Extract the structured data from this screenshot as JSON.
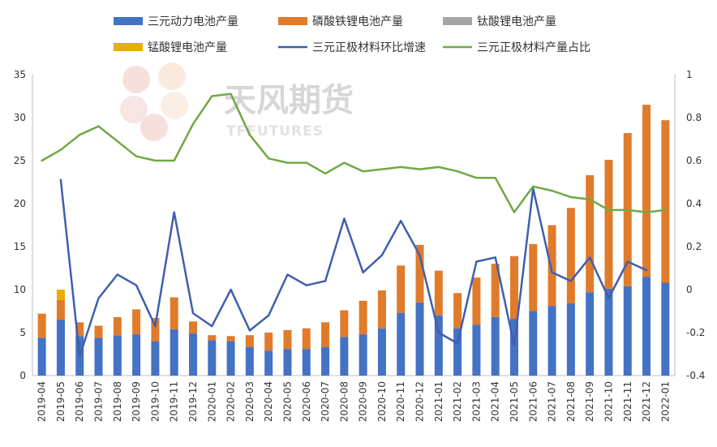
{
  "watermark": {
    "cn": "天风期货",
    "en": "TFFUTURES"
  },
  "colors": {
    "ternary": "#4472C4",
    "lfp": "#E07B2B",
    "lto": "#A5A5A5",
    "lmo": "#E6B000",
    "growth_line": "#3F5FAE",
    "share_line": "#70A843",
    "axis": "#BFBFBF"
  },
  "chart_data": {
    "type": "bar",
    "categories": [
      "2019-04",
      "2019-05",
      "2019-06",
      "2019-07",
      "2019-08",
      "2019-09",
      "2019-10",
      "2019-11",
      "2019-12",
      "2020-01",
      "2020-02",
      "2020-03",
      "2020-04",
      "2020-05",
      "2020-06",
      "2020-07",
      "2020-08",
      "2020-09",
      "2020-10",
      "2020-11",
      "2020-12",
      "2021-01",
      "2021-02",
      "2021-03",
      "2021-04",
      "2021-05",
      "2021-06",
      "2021-07",
      "2021-08",
      "2021-09",
      "2021-10",
      "2021-11",
      "2021-12",
      "2022-01"
    ],
    "y_left": {
      "min": 0,
      "max": 35,
      "ticks": [
        "0",
        "5",
        "10",
        "15",
        "20",
        "25",
        "30",
        "35"
      ]
    },
    "y_right": {
      "min": -0.4,
      "max": 1,
      "ticks": [
        "-0.4",
        "-0.2",
        "0",
        "0.2",
        "0.4",
        "0.6",
        "0.8",
        "1"
      ]
    },
    "legend_position": "top",
    "series": [
      {
        "name": "三元动力电池产量",
        "kind": "bar",
        "axis": "left",
        "color": "#4472C4",
        "values": [
          4.4,
          6.5,
          4.6,
          4.4,
          4.7,
          4.8,
          4.0,
          5.4,
          4.9,
          4.1,
          4.0,
          3.3,
          2.9,
          3.1,
          3.1,
          3.3,
          4.5,
          4.8,
          5.5,
          7.3,
          8.5,
          7.0,
          5.5,
          5.9,
          6.8,
          6.6,
          7.5,
          8.1,
          8.4,
          9.7,
          10.1,
          10.4,
          11.5,
          10.8
        ]
      },
      {
        "name": "磷酸铁锂电池产量",
        "kind": "bar",
        "axis": "left",
        "color": "#E07B2B",
        "values": [
          2.8,
          2.3,
          1.6,
          1.4,
          2.1,
          2.9,
          2.7,
          3.7,
          1.4,
          0.6,
          0.6,
          1.4,
          2.1,
          2.2,
          2.4,
          2.9,
          3.1,
          3.9,
          4.4,
          5.5,
          6.7,
          5.2,
          4.1,
          5.5,
          6.2,
          7.3,
          7.8,
          9.4,
          11.1,
          13.6,
          15.0,
          17.8,
          20.0,
          18.9
        ]
      },
      {
        "name": "钛酸锂电池产量",
        "kind": "bar",
        "axis": "left",
        "color": "#A5A5A5",
        "values": [
          0,
          0,
          0,
          0,
          0,
          0,
          0,
          0,
          0,
          0,
          0,
          0,
          0,
          0,
          0,
          0,
          0,
          0,
          0,
          0,
          0,
          0,
          0,
          0,
          0,
          0,
          0,
          0,
          0,
          0,
          0,
          0,
          0,
          0
        ]
      },
      {
        "name": "锰酸锂电池产量",
        "kind": "bar",
        "axis": "left",
        "color": "#E6B000",
        "values": [
          0,
          1.2,
          0,
          0,
          0,
          0,
          0,
          0,
          0,
          0,
          0,
          0,
          0,
          0,
          0,
          0,
          0,
          0,
          0,
          0,
          0,
          0,
          0,
          0,
          0,
          0,
          0,
          0,
          0,
          0,
          0,
          0,
          0,
          0
        ]
      },
      {
        "name": "三元正极材料环比增速",
        "kind": "line",
        "axis": "right",
        "color": "#3F5FAE",
        "values": [
          null,
          0.51,
          -0.31,
          -0.04,
          0.07,
          0.02,
          -0.17,
          0.36,
          -0.11,
          -0.17,
          0.0,
          -0.19,
          -0.12,
          0.07,
          0.02,
          0.04,
          0.33,
          0.08,
          0.16,
          0.32,
          0.16,
          -0.2,
          -0.25,
          0.13,
          0.15,
          -0.26,
          0.47,
          0.08,
          0.04,
          0.15,
          -0.04,
          0.13,
          0.09,
          null
        ]
      },
      {
        "name": "三元正极材料产量占比",
        "kind": "line",
        "axis": "right",
        "color": "#70A843",
        "values": [
          0.6,
          0.65,
          0.72,
          0.76,
          0.69,
          0.62,
          0.6,
          0.6,
          0.77,
          0.9,
          0.91,
          0.72,
          0.61,
          0.59,
          0.59,
          0.54,
          0.59,
          0.55,
          0.56,
          0.57,
          0.56,
          0.57,
          0.55,
          0.52,
          0.52,
          0.36,
          0.48,
          0.46,
          0.43,
          0.42,
          0.37,
          0.37,
          0.36,
          0.37
        ]
      }
    ]
  }
}
